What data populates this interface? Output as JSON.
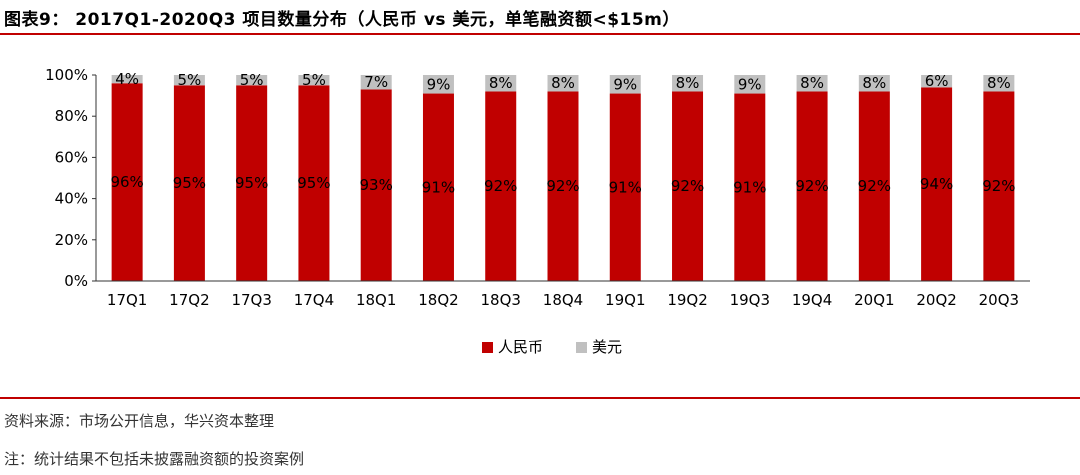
{
  "figure": {
    "title": "图表9： 2017Q1-2020Q3 项目数量分布（人民币  vs  美元，单笔融资额<$15m）",
    "source": "资料来源：市场公开信息，华兴资本整理",
    "note": "注：统计结果不包括未披露融资额的投资案例"
  },
  "chart_data": {
    "type": "bar",
    "stacked": true,
    "percent": true,
    "categories": [
      "17Q1",
      "17Q2",
      "17Q3",
      "17Q4",
      "18Q1",
      "18Q2",
      "18Q3",
      "18Q4",
      "19Q1",
      "19Q2",
      "19Q3",
      "19Q4",
      "20Q1",
      "20Q2",
      "20Q3"
    ],
    "series": [
      {
        "name": "人民币",
        "color": "#c00000",
        "values": [
          96,
          95,
          95,
          95,
          93,
          91,
          92,
          92,
          91,
          92,
          91,
          92,
          92,
          94,
          92
        ]
      },
      {
        "name": "美元",
        "color": "#c0c0c0",
        "values": [
          4,
          5,
          5,
          5,
          7,
          9,
          8,
          8,
          9,
          8,
          9,
          8,
          8,
          6,
          8
        ]
      }
    ],
    "data_labels": {
      "人民币": [
        "96%",
        "95%",
        "95%",
        "95%",
        "93%",
        "91%",
        "92%",
        "92%",
        "91%",
        "92%",
        "91%",
        "92%",
        "92%",
        "94%",
        "92%"
      ],
      "美元": [
        "4%",
        "5%",
        "5%",
        "5%",
        "7%",
        "9%",
        "8%",
        "8%",
        "9%",
        "8%",
        "9%",
        "8%",
        "8%",
        "6%",
        "8%"
      ]
    },
    "y_ticks": [
      "0%",
      "20%",
      "40%",
      "60%",
      "80%",
      "100%"
    ],
    "ylim": [
      0,
      100
    ],
    "legend": "bottom-center",
    "grid": false
  }
}
